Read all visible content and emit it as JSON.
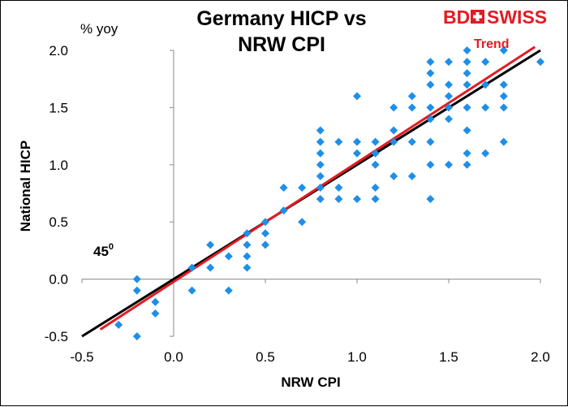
{
  "chart_data": {
    "type": "scatter",
    "title_line1": "Germany HICP vs",
    "title_line2": "NRW CPI",
    "unit_label": "% yoy",
    "xlabel": "NRW  CPI",
    "ylabel": "National HICP",
    "xlim": [
      -0.5,
      2.0
    ],
    "ylim": [
      -0.5,
      2.0
    ],
    "x_ticks": [
      "-0.5",
      "0.0",
      "0.5",
      "1.0",
      "1.5",
      "2.0"
    ],
    "y_ticks": [
      "-0.5",
      "0.0",
      "0.5",
      "1.0",
      "1.5",
      "2.0"
    ],
    "x_tick_values": [
      -0.5,
      0.0,
      0.5,
      1.0,
      1.5,
      2.0
    ],
    "y_tick_values": [
      -0.5,
      0.0,
      0.5,
      1.0,
      1.5,
      2.0
    ],
    "point_color": "#1e8fe8",
    "points": [
      [
        -0.3,
        -0.4
      ],
      [
        -0.2,
        0.0
      ],
      [
        -0.2,
        -0.1
      ],
      [
        -0.2,
        -0.5
      ],
      [
        -0.1,
        -0.2
      ],
      [
        -0.1,
        -0.3
      ],
      [
        0.1,
        0.1
      ],
      [
        0.1,
        -0.1
      ],
      [
        0.2,
        0.3
      ],
      [
        0.2,
        0.1
      ],
      [
        0.3,
        0.2
      ],
      [
        0.3,
        -0.1
      ],
      [
        0.4,
        0.4
      ],
      [
        0.4,
        0.3
      ],
      [
        0.4,
        0.2
      ],
      [
        0.4,
        0.1
      ],
      [
        0.5,
        0.5
      ],
      [
        0.5,
        0.4
      ],
      [
        0.5,
        0.3
      ],
      [
        0.6,
        0.6
      ],
      [
        0.6,
        0.8
      ],
      [
        0.7,
        0.8
      ],
      [
        0.7,
        0.5
      ],
      [
        0.8,
        1.3
      ],
      [
        0.8,
        1.2
      ],
      [
        0.8,
        1.1
      ],
      [
        0.8,
        1.0
      ],
      [
        0.8,
        0.9
      ],
      [
        0.8,
        0.8
      ],
      [
        0.8,
        0.7
      ],
      [
        0.9,
        1.2
      ],
      [
        0.9,
        0.8
      ],
      [
        0.9,
        0.7
      ],
      [
        1.0,
        1.6
      ],
      [
        1.0,
        1.2
      ],
      [
        1.0,
        1.1
      ],
      [
        1.0,
        0.7
      ],
      [
        1.1,
        1.2
      ],
      [
        1.1,
        1.1
      ],
      [
        1.1,
        1.0
      ],
      [
        1.1,
        0.8
      ],
      [
        1.1,
        0.7
      ],
      [
        1.2,
        1.5
      ],
      [
        1.2,
        1.3
      ],
      [
        1.2,
        1.2
      ],
      [
        1.2,
        0.9
      ],
      [
        1.3,
        1.6
      ],
      [
        1.3,
        1.5
      ],
      [
        1.3,
        1.2
      ],
      [
        1.3,
        0.9
      ],
      [
        1.4,
        1.9
      ],
      [
        1.4,
        1.8
      ],
      [
        1.4,
        1.7
      ],
      [
        1.4,
        1.5
      ],
      [
        1.4,
        1.4
      ],
      [
        1.4,
        1.2
      ],
      [
        1.4,
        1.0
      ],
      [
        1.4,
        0.7
      ],
      [
        1.5,
        1.9
      ],
      [
        1.5,
        1.7
      ],
      [
        1.5,
        1.6
      ],
      [
        1.5,
        1.5
      ],
      [
        1.5,
        1.4
      ],
      [
        1.5,
        1.0
      ],
      [
        1.6,
        2.0
      ],
      [
        1.6,
        1.9
      ],
      [
        1.6,
        1.8
      ],
      [
        1.6,
        1.7
      ],
      [
        1.6,
        1.5
      ],
      [
        1.6,
        1.3
      ],
      [
        1.6,
        1.1
      ],
      [
        1.6,
        1.0
      ],
      [
        1.7,
        1.9
      ],
      [
        1.7,
        1.7
      ],
      [
        1.7,
        1.5
      ],
      [
        1.7,
        1.1
      ],
      [
        1.8,
        2.0
      ],
      [
        1.8,
        1.7
      ],
      [
        1.8,
        1.6
      ],
      [
        1.8,
        1.5
      ],
      [
        1.8,
        1.2
      ],
      [
        2.0,
        1.9
      ]
    ],
    "reference_line": {
      "name": "45 degree line",
      "label": "45",
      "label_sup": "0",
      "from": [
        -0.5,
        -0.5
      ],
      "to": [
        2.0,
        2.0
      ],
      "color": "#000000"
    },
    "trend_line": {
      "name": "Trend",
      "label": "Trend",
      "from": [
        -0.4,
        -0.44
      ],
      "to": [
        1.97,
        2.03
      ],
      "color": "#e31b23"
    }
  },
  "logo": {
    "part1": "BD",
    "part2": "SWISS"
  }
}
